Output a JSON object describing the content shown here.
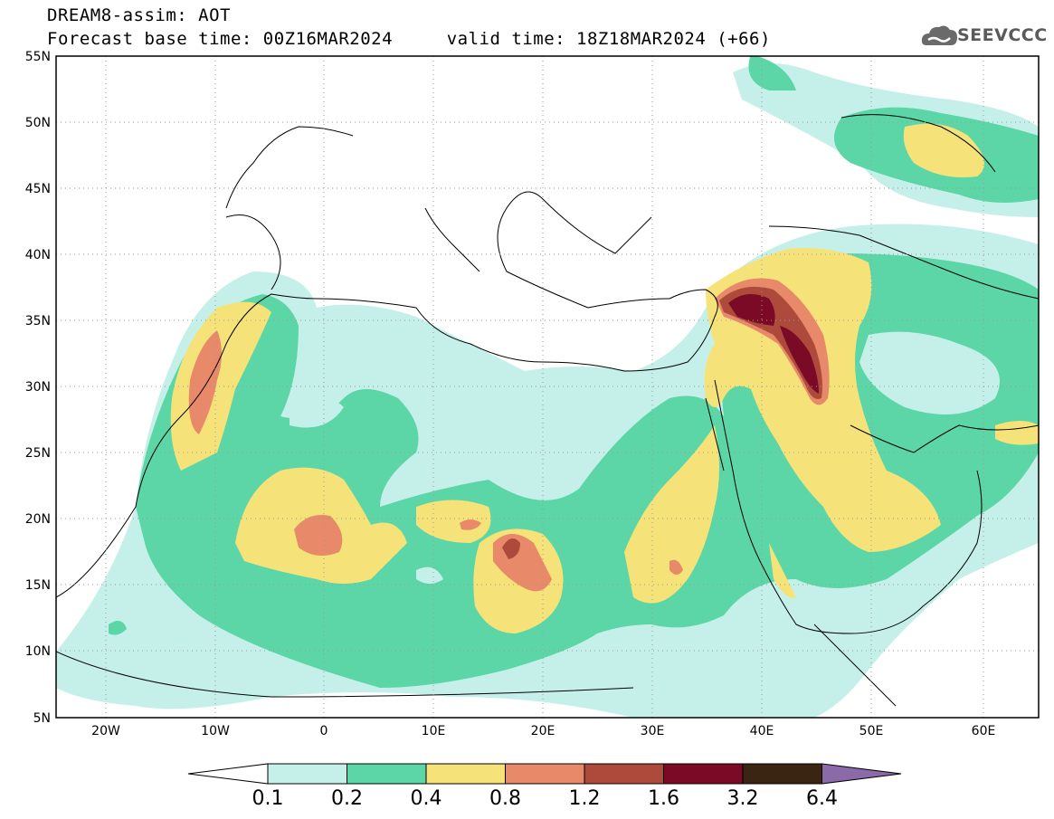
{
  "title": {
    "line1": "DREAM8-assim: AOT",
    "line2": "Forecast base time: 00Z16MAR2024     valid time: 18Z18MAR2024 (+66)"
  },
  "logo": {
    "text": "SEEVCCC",
    "icon": "cloud-logo-icon",
    "color": "#6a6a6a"
  },
  "map": {
    "variable": "AOT",
    "lat_ticks": [
      "55N",
      "50N",
      "45N",
      "40N",
      "35N",
      "30N",
      "25N",
      "20N",
      "15N",
      "10N",
      "5N"
    ],
    "lon_ticks": [
      "20W",
      "10W",
      "0",
      "10E",
      "20E",
      "30E",
      "40E",
      "50E",
      "60E"
    ],
    "lon_range": [
      -25,
      65
    ],
    "lat_range": [
      5,
      55
    ],
    "gridlines": "dotted"
  },
  "colorbar": {
    "labels": [
      "0.1",
      "0.2",
      "0.4",
      "0.8",
      "1.2",
      "1.6",
      "3.2",
      "6.4"
    ],
    "colors": [
      "#ffffff",
      "#c5f0ea",
      "#5cd6a6",
      "#f5e37a",
      "#e8896a",
      "#ad4a3c",
      "#7a0a25",
      "#3a2412",
      "#8a6aa8"
    ]
  }
}
